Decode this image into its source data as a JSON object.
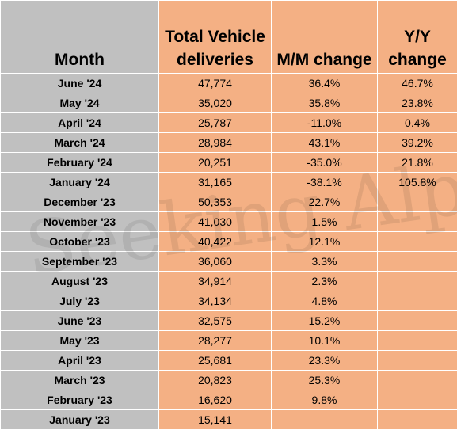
{
  "table": {
    "headers": {
      "month": "Month",
      "total": "Total Vehicle deliveries",
      "mm": "M/M change",
      "yy": "Y/Y change"
    },
    "rows": [
      {
        "month": "June '24",
        "total": "47,774",
        "mm": "36.4%",
        "yy": "46.7%"
      },
      {
        "month": "May '24",
        "total": "35,020",
        "mm": "35.8%",
        "yy": "23.8%"
      },
      {
        "month": "April '24",
        "total": "25,787",
        "mm": "-11.0%",
        "yy": "0.4%"
      },
      {
        "month": "March '24",
        "total": "28,984",
        "mm": "43.1%",
        "yy": "39.2%"
      },
      {
        "month": "February '24",
        "total": "20,251",
        "mm": "-35.0%",
        "yy": "21.8%"
      },
      {
        "month": "January '24",
        "total": "31,165",
        "mm": "-38.1%",
        "yy": "105.8%"
      },
      {
        "month": "December '23",
        "total": "50,353",
        "mm": "22.7%",
        "yy": ""
      },
      {
        "month": "November '23",
        "total": "41,030",
        "mm": "1.5%",
        "yy": ""
      },
      {
        "month": "October '23",
        "total": "40,422",
        "mm": "12.1%",
        "yy": ""
      },
      {
        "month": "September '23",
        "total": "36,060",
        "mm": "3.3%",
        "yy": ""
      },
      {
        "month": "August '23",
        "total": "34,914",
        "mm": "2.3%",
        "yy": ""
      },
      {
        "month": "July '23",
        "total": "34,134",
        "mm": "4.8%",
        "yy": ""
      },
      {
        "month": "June '23",
        "total": "32,575",
        "mm": "15.2%",
        "yy": ""
      },
      {
        "month": "May '23",
        "total": "28,277",
        "mm": "10.1%",
        "yy": ""
      },
      {
        "month": "April '23",
        "total": "25,681",
        "mm": "23.3%",
        "yy": ""
      },
      {
        "month": "March '23",
        "total": "20,823",
        "mm": "25.3%",
        "yy": ""
      },
      {
        "month": "February '23",
        "total": "16,620",
        "mm": "9.8%",
        "yy": ""
      },
      {
        "month": "January '23",
        "total": "15,141",
        "mm": "",
        "yy": ""
      }
    ]
  },
  "watermark": "Seeking Alpha",
  "colors": {
    "month_column": "#c0c0c0",
    "data_columns": "#f4b084",
    "grid": "#ffffff"
  }
}
